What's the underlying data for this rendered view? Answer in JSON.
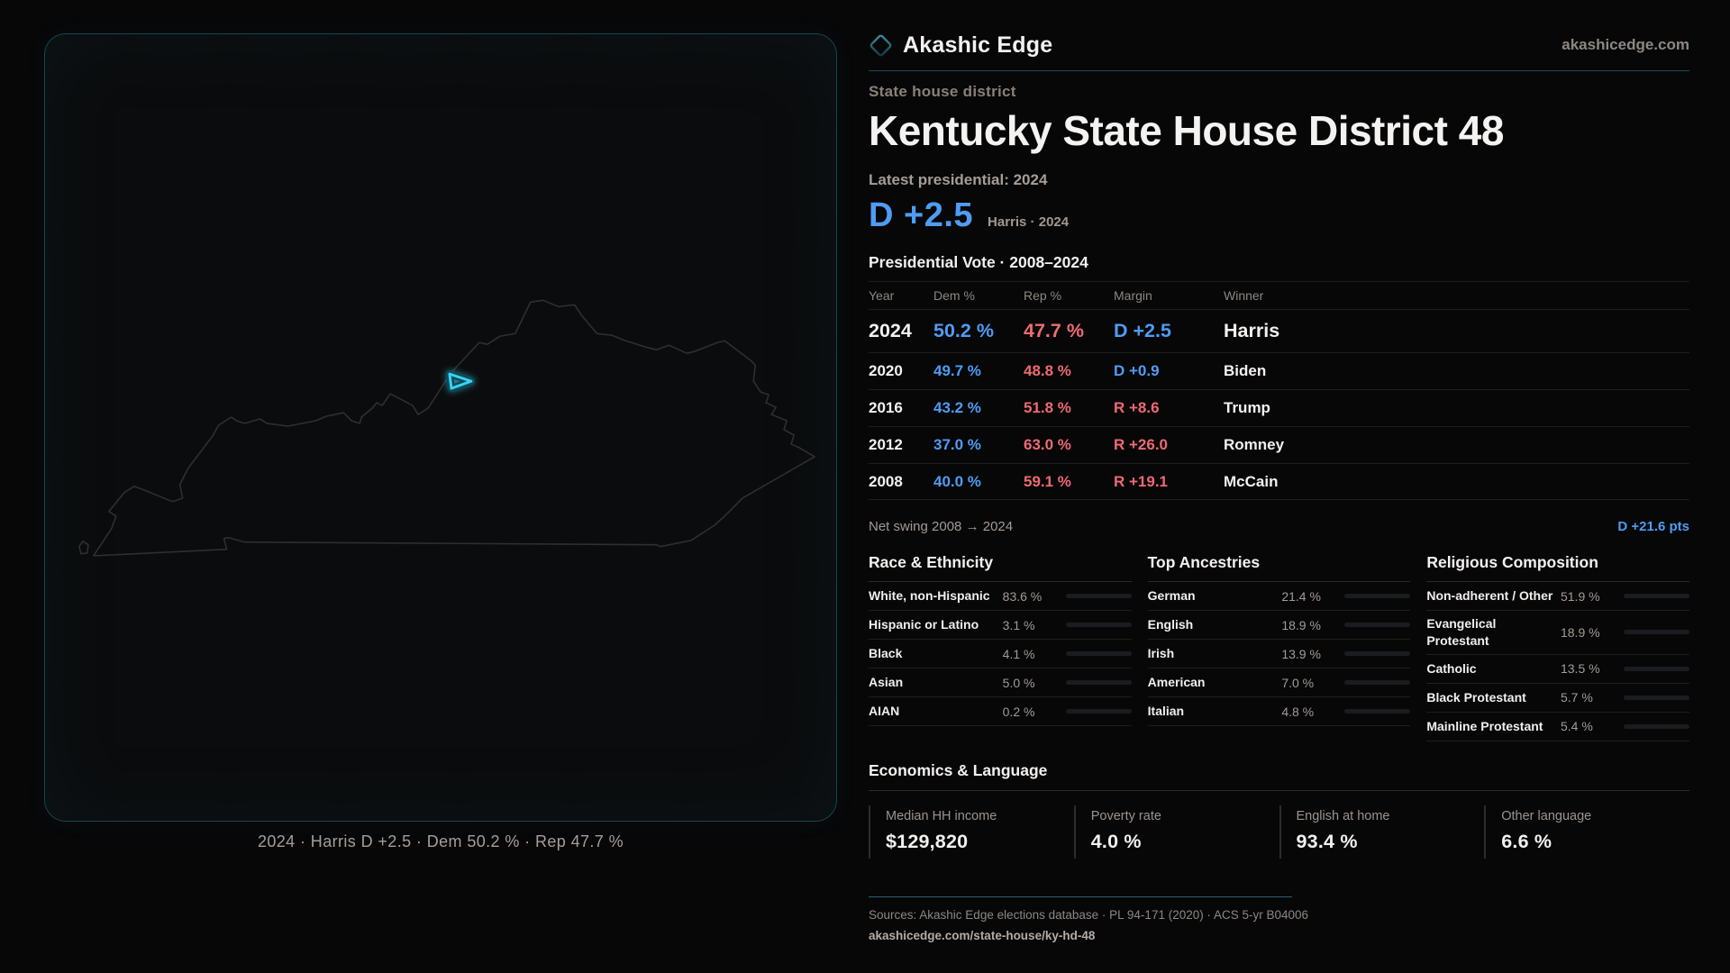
{
  "brand": {
    "name": "Akashic Edge",
    "domain": "akashicedge.com",
    "logo_icon": "diamond-icon"
  },
  "colors": {
    "dem": "#4f9cf3",
    "rep": "#ee6a72",
    "accent_cyan": "#3bd2f1",
    "panel_border_teal": "#17454f",
    "bar_default": "#a9bcd7"
  },
  "page": {
    "eyebrow": "State house district",
    "title": "Kentucky State House District 48",
    "latest_label": "Latest presidential: 2024",
    "headline_margin": "D +2.5",
    "headline_context": "Harris · 2024"
  },
  "map": {
    "caption": "2024 · Harris D +2.5 · Dem 50.2 % · Rep 47.7 %",
    "highlight": "district-48-shape"
  },
  "vote_table": {
    "title": "Presidential Vote · 2008–2024",
    "columns": [
      "Year",
      "Dem %",
      "Rep %",
      "Margin",
      "Winner"
    ],
    "rows": [
      {
        "year": "2024",
        "dem": "50.2 %",
        "rep": "47.7 %",
        "margin": "D +2.5",
        "party": "D",
        "winner": "Harris"
      },
      {
        "year": "2020",
        "dem": "49.7 %",
        "rep": "48.8 %",
        "margin": "D +0.9",
        "party": "D",
        "winner": "Biden"
      },
      {
        "year": "2016",
        "dem": "43.2 %",
        "rep": "51.8 %",
        "margin": "R +8.6",
        "party": "R",
        "winner": "Trump"
      },
      {
        "year": "2012",
        "dem": "37.0 %",
        "rep": "63.0 %",
        "margin": "R +26.0",
        "party": "R",
        "winner": "Romney"
      },
      {
        "year": "2008",
        "dem": "40.0 %",
        "rep": "59.1 %",
        "margin": "R +19.1",
        "party": "R",
        "winner": "McCain"
      }
    ]
  },
  "net_swing": {
    "label": "Net swing 2008 → 2024",
    "value": "D +21.6 pts"
  },
  "demographics": [
    {
      "title": "Race & Ethnicity",
      "rows": [
        {
          "label": "White, non-Hispanic",
          "value": "83.6 %",
          "pct": 83.6,
          "color": "#a9bcd7"
        },
        {
          "label": "Hispanic or Latino",
          "value": "3.1 %",
          "pct": 3.1,
          "color": "#e09c3c"
        },
        {
          "label": "Black",
          "value": "4.1 %",
          "pct": 4.1,
          "color": "#9a8af0"
        },
        {
          "label": "Asian",
          "value": "5.0 %",
          "pct": 5.0,
          "color": "#41c493"
        },
        {
          "label": "AIAN",
          "value": "0.2 %",
          "pct": 0.2,
          "color": "#a9bcd7"
        }
      ]
    },
    {
      "title": "Top Ancestries",
      "rows": [
        {
          "label": "German",
          "value": "21.4 %",
          "pct": 21.4,
          "color": "#a9bcd7"
        },
        {
          "label": "English",
          "value": "18.9 %",
          "pct": 18.9,
          "color": "#a9bcd7"
        },
        {
          "label": "Irish",
          "value": "13.9 %",
          "pct": 13.9,
          "color": "#a9bcd7"
        },
        {
          "label": "American",
          "value": "7.0 %",
          "pct": 7.0,
          "color": "#a9bcd7"
        },
        {
          "label": "Italian",
          "value": "4.8 %",
          "pct": 4.8,
          "color": "#a9bcd7"
        }
      ]
    },
    {
      "title": "Religious Composition",
      "rows": [
        {
          "label": "Non-adherent / Other",
          "value": "51.9 %",
          "pct": 51.9,
          "color": "#8795aa"
        },
        {
          "label": "Evangelical Protestant",
          "value": "18.9 %",
          "pct": 18.9,
          "color": "#e4717b"
        },
        {
          "label": "Catholic",
          "value": "13.5 %",
          "pct": 13.5,
          "color": "#deb33e"
        },
        {
          "label": "Black Protestant",
          "value": "5.7 %",
          "pct": 5.7,
          "color": "#9a8af0"
        },
        {
          "label": "Mainline Protestant",
          "value": "5.4 %",
          "pct": 5.4,
          "color": "#55a0e8"
        }
      ]
    }
  ],
  "economics": {
    "title": "Economics & Language",
    "stats": [
      {
        "label": "Median HH income",
        "value": "$129,820"
      },
      {
        "label": "Poverty rate",
        "value": "4.0 %"
      },
      {
        "label": "English at home",
        "value": "93.4 %"
      },
      {
        "label": "Other language",
        "value": "6.6 %"
      }
    ]
  },
  "footer": {
    "sources": "Sources: Akashic Edge elections database · PL 94-171 (2020) · ACS 5-yr B04006",
    "permalink": "akashicedge.com/state-house/ky-hd-48"
  }
}
